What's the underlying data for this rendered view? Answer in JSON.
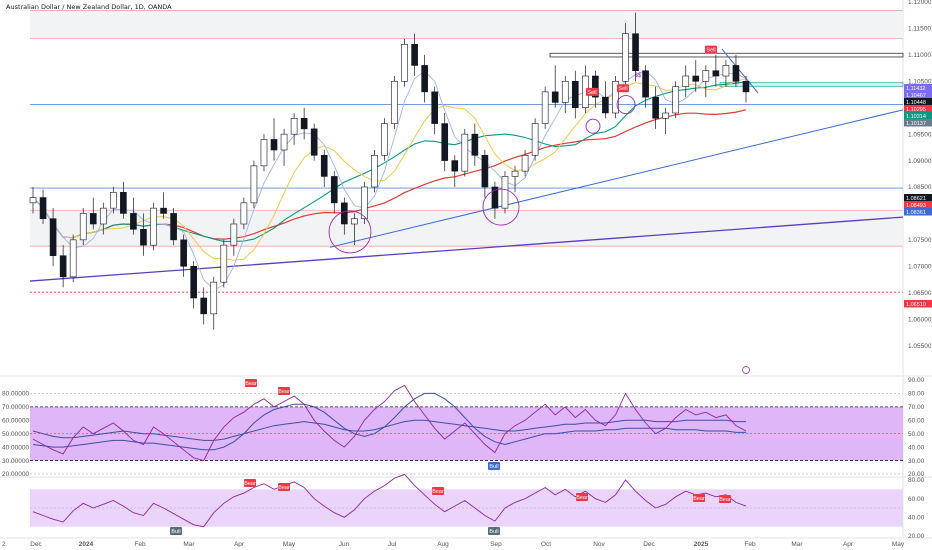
{
  "title": "Australian Dollar / New Zealand Dollar, 1D, OANDA",
  "chart_data": [
    {
      "type": "candlestick",
      "title": "Australian Dollar / New Zealand Dollar, 1D, OANDA",
      "ylim": [
        1.05,
        1.12
      ],
      "y_ticks": [
        "1.12000",
        "1.11500",
        "1.11000",
        "1.10500",
        "1.10000",
        "1.09500",
        "1.09000",
        "1.08500",
        "1.08000",
        "1.07500",
        "1.07000",
        "1.06500",
        "1.06000",
        "1.05500"
      ],
      "x_ticks": [
        "Dec",
        "2024",
        "Feb",
        "Mar",
        "Apr",
        "May",
        "Jun",
        "Jul",
        "Aug",
        "Sep",
        "Oct",
        "Nov",
        "Dec",
        "2025",
        "Feb",
        "Mar",
        "Apr",
        "May"
      ],
      "x_corner_label": "2",
      "price_labels": [
        {
          "value": "1.11432",
          "color": "#7b6cf0"
        },
        {
          "value": "1.10467",
          "color": "#7b6cf0"
        },
        {
          "value": "1.10448",
          "color": "#131722"
        },
        {
          "value": "1.10295",
          "color": "#f23645"
        },
        {
          "value": "1.10314",
          "color": "#089981"
        },
        {
          "value": "1.10137",
          "color": "#6a7b8c"
        },
        {
          "value": "1.08621",
          "color": "#131722"
        },
        {
          "value": "1.08493",
          "color": "#f23645"
        },
        {
          "value": "1.08361",
          "color": "#3c6ad6"
        },
        {
          "value": "1.06510",
          "color": "#f23645"
        }
      ],
      "annotations": [
        "Sell",
        "Sell",
        "Sell",
        "$$"
      ],
      "trendlines": [
        "blue rising support",
        "purple rising support",
        "descending resistance"
      ],
      "horizontal_levels": [
        1.1184,
        1.1131,
        1.1103,
        1.1006,
        1.0848,
        1.0806,
        1.0738,
        1.0651
      ],
      "moving_averages": [
        "red long-term",
        "teal medium-term",
        "yellow",
        "light-blue short-term"
      ],
      "candles": [
        [
          1.082,
          1.085,
          1.08,
          1.083
        ],
        [
          1.083,
          1.0845,
          1.078,
          1.079
        ],
        [
          1.079,
          1.081,
          1.07,
          1.072
        ],
        [
          1.072,
          1.074,
          1.066,
          1.068
        ],
        [
          1.068,
          1.076,
          1.067,
          1.075
        ],
        [
          1.075,
          1.081,
          1.074,
          1.08
        ],
        [
          1.08,
          1.083,
          1.077,
          1.078
        ],
        [
          1.078,
          1.082,
          1.076,
          1.081
        ],
        [
          1.081,
          1.085,
          1.08,
          1.084
        ],
        [
          1.084,
          1.086,
          1.079,
          1.08
        ],
        [
          1.08,
          1.083,
          1.076,
          1.077
        ],
        [
          1.077,
          1.08,
          1.072,
          1.074
        ],
        [
          1.074,
          1.082,
          1.073,
          1.081
        ],
        [
          1.081,
          1.084,
          1.079,
          1.08
        ],
        [
          1.08,
          1.081,
          1.074,
          1.075
        ],
        [
          1.075,
          1.076,
          1.068,
          1.07
        ],
        [
          1.07,
          1.071,
          1.062,
          1.064
        ],
        [
          1.064,
          1.066,
          1.059,
          1.061
        ],
        [
          1.061,
          1.068,
          1.058,
          1.067
        ],
        [
          1.067,
          1.075,
          1.066,
          1.074
        ],
        [
          1.074,
          1.079,
          1.072,
          1.078
        ],
        [
          1.078,
          1.083,
          1.077,
          1.082
        ],
        [
          1.082,
          1.09,
          1.081,
          1.089
        ],
        [
          1.089,
          1.095,
          1.088,
          1.094
        ],
        [
          1.094,
          1.098,
          1.09,
          1.092
        ],
        [
          1.092,
          1.096,
          1.089,
          1.095
        ],
        [
          1.095,
          1.099,
          1.093,
          1.098
        ],
        [
          1.098,
          1.1,
          1.094,
          1.096
        ],
        [
          1.096,
          1.097,
          1.09,
          1.091
        ],
        [
          1.091,
          1.092,
          1.085,
          1.087
        ],
        [
          1.087,
          1.088,
          1.08,
          1.082
        ],
        [
          1.082,
          1.083,
          1.076,
          1.078
        ],
        [
          1.078,
          1.08,
          1.074,
          1.079
        ],
        [
          1.079,
          1.086,
          1.078,
          1.085
        ],
        [
          1.085,
          1.092,
          1.084,
          1.091
        ],
        [
          1.091,
          1.098,
          1.09,
          1.097
        ],
        [
          1.097,
          1.106,
          1.096,
          1.105
        ],
        [
          1.105,
          1.113,
          1.104,
          1.112
        ],
        [
          1.112,
          1.114,
          1.106,
          1.108
        ],
        [
          1.108,
          1.11,
          1.101,
          1.103
        ],
        [
          1.103,
          1.104,
          1.095,
          1.097
        ],
        [
          1.097,
          1.099,
          1.088,
          1.09
        ],
        [
          1.09,
          1.091,
          1.085,
          1.088
        ],
        [
          1.088,
          1.096,
          1.087,
          1.095
        ],
        [
          1.095,
          1.097,
          1.089,
          1.091
        ],
        [
          1.091,
          1.092,
          1.083,
          1.085
        ],
        [
          1.085,
          1.086,
          1.079,
          1.081
        ],
        [
          1.081,
          1.088,
          1.08,
          1.087
        ],
        [
          1.087,
          1.089,
          1.084,
          1.088
        ],
        [
          1.088,
          1.092,
          1.087,
          1.091
        ],
        [
          1.091,
          1.098,
          1.09,
          1.097
        ],
        [
          1.097,
          1.104,
          1.096,
          1.103
        ],
        [
          1.103,
          1.108,
          1.1,
          1.101
        ],
        [
          1.101,
          1.106,
          1.099,
          1.105
        ],
        [
          1.105,
          1.107,
          1.098,
          1.1
        ],
        [
          1.1,
          1.108,
          1.099,
          1.106
        ],
        [
          1.106,
          1.107,
          1.1,
          1.102
        ],
        [
          1.102,
          1.105,
          1.098,
          1.099
        ],
        [
          1.099,
          1.106,
          1.098,
          1.105
        ],
        [
          1.105,
          1.116,
          1.104,
          1.114
        ],
        [
          1.114,
          1.118,
          1.105,
          1.107
        ],
        [
          1.107,
          1.108,
          1.1,
          1.102
        ],
        [
          1.102,
          1.104,
          1.096,
          1.098
        ],
        [
          1.098,
          1.1,
          1.095,
          1.099
        ],
        [
          1.099,
          1.105,
          1.098,
          1.104
        ],
        [
          1.104,
          1.108,
          1.102,
          1.106
        ],
        [
          1.106,
          1.109,
          1.103,
          1.105
        ],
        [
          1.105,
          1.108,
          1.102,
          1.107
        ],
        [
          1.107,
          1.11,
          1.104,
          1.106
        ],
        [
          1.106,
          1.109,
          1.104,
          1.108
        ],
        [
          1.108,
          1.11,
          1.104,
          1.105
        ],
        [
          1.105,
          1.106,
          1.101,
          1.103
        ]
      ]
    },
    {
      "type": "line",
      "title": "RSI panel 1",
      "ylim": [
        20,
        90
      ],
      "y_ticks": [
        "80.00000",
        "70.00000",
        "60.00000",
        "50.00000",
        "40.00000",
        "30.00000",
        "20.00000"
      ],
      "y_ticks_right": [
        "90.00",
        "80.00",
        "70.00",
        "60.00",
        "50.00",
        "40.00",
        "30.00",
        "20.00"
      ],
      "band": [
        30,
        70
      ],
      "markers": [
        "Bear",
        "Bear",
        "Bull"
      ],
      "series": [
        {
          "values": [
            46,
            42,
            38,
            35,
            47,
            55,
            50,
            54,
            58,
            52,
            45,
            42,
            55,
            50,
            44,
            38,
            32,
            30,
            45,
            55,
            62,
            66,
            72,
            76,
            70,
            74,
            78,
            72,
            60,
            52,
            45,
            40,
            48,
            60,
            68,
            74,
            82,
            86,
            74,
            64,
            54,
            46,
            52,
            58,
            50,
            42,
            36,
            50,
            56,
            60,
            66,
            72,
            64,
            70,
            62,
            68,
            60,
            56,
            64,
            80,
            68,
            58,
            50,
            54,
            62,
            68,
            64,
            66,
            62,
            64,
            56,
            52
          ]
        },
        {
          "values": [
            52,
            50,
            48,
            47,
            47,
            48,
            49,
            50,
            51,
            52,
            51,
            50,
            50,
            49,
            48,
            47,
            46,
            45,
            45,
            46,
            48,
            50,
            52,
            54,
            56,
            57,
            58,
            59,
            58,
            57,
            55,
            53,
            52,
            52,
            53,
            55,
            57,
            59,
            60,
            60,
            59,
            58,
            57,
            56,
            55,
            54,
            53,
            52,
            52,
            53,
            54,
            55,
            56,
            57,
            57,
            58,
            58,
            58,
            59,
            60,
            60,
            60,
            59,
            59,
            59,
            60,
            60,
            60,
            60,
            60,
            59,
            59
          ]
        },
        {
          "values": [
            42,
            41,
            40,
            40,
            41,
            42,
            43,
            44,
            45,
            45,
            44,
            43,
            43,
            42,
            41,
            40,
            39,
            38,
            38,
            40,
            44,
            50,
            58,
            64,
            68,
            70,
            72,
            72,
            70,
            66,
            60,
            54,
            50,
            48,
            50,
            55,
            62,
            70,
            76,
            80,
            80,
            76,
            70,
            62,
            54,
            48,
            44,
            42,
            44,
            46,
            48,
            50,
            50,
            51,
            52,
            52,
            52,
            53,
            53,
            54,
            54,
            54,
            54,
            54,
            53,
            53,
            53,
            52,
            52,
            52,
            51,
            51
          ]
        }
      ]
    },
    {
      "type": "line",
      "title": "RSI panel 2",
      "ylim": [
        20,
        80
      ],
      "y_ticks_right": [
        "80.00",
        "60.00",
        "40.00",
        "20.00"
      ],
      "band": [
        30,
        70
      ],
      "markers": [
        "Bear",
        "Bear",
        "Bull",
        "Bear",
        "Bull",
        "Bear",
        "Bear",
        "Bear"
      ],
      "series": [
        {
          "values": [
            46,
            42,
            38,
            35,
            47,
            55,
            50,
            54,
            58,
            52,
            45,
            42,
            55,
            50,
            44,
            38,
            32,
            30,
            45,
            55,
            62,
            66,
            72,
            76,
            70,
            74,
            78,
            72,
            60,
            52,
            45,
            40,
            48,
            60,
            68,
            74,
            82,
            86,
            74,
            64,
            54,
            46,
            52,
            58,
            50,
            42,
            36,
            50,
            56,
            60,
            66,
            72,
            64,
            70,
            62,
            68,
            60,
            56,
            64,
            80,
            68,
            58,
            50,
            54,
            62,
            68,
            64,
            66,
            62,
            64,
            56,
            52
          ]
        }
      ]
    }
  ]
}
